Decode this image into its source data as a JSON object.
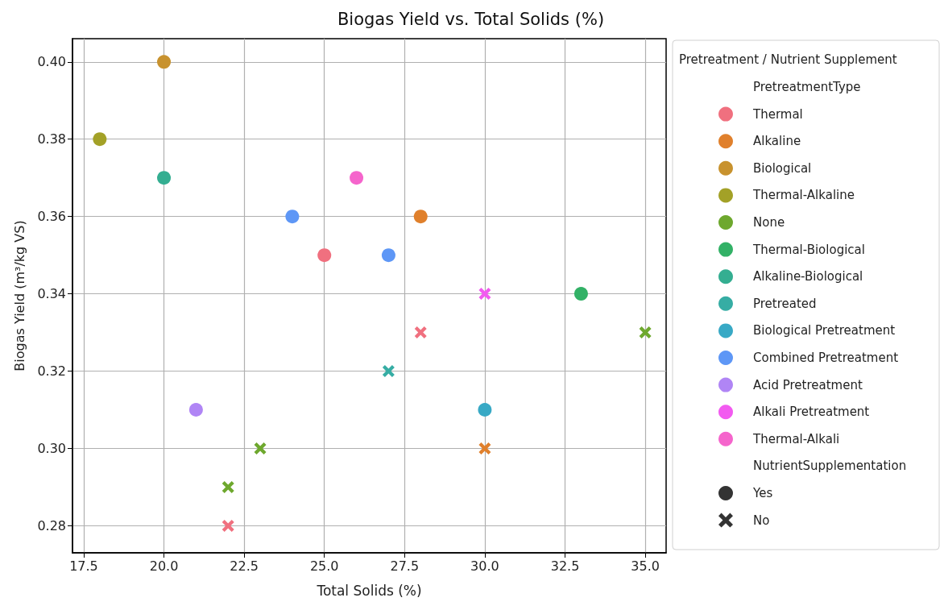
{
  "chart_data": {
    "type": "scatter",
    "title": "Biogas Yield vs. Total Solids (%)",
    "xlabel": "Total Solids (%)",
    "ylabel": "Biogas Yield (m³/kg VS)",
    "legend_title": "Pretreatment / Nutrient Supplement",
    "annotations": [
      "PretreatmentType",
      "NutrientSupplementation"
    ],
    "xlim": [
      17.15,
      35.65
    ],
    "xticks": [
      {
        "value": 17.5,
        "label": "17.5"
      },
      {
        "value": 20,
        "label": "20.0"
      },
      {
        "value": 22.5,
        "label": "22.5"
      },
      {
        "value": 25,
        "label": "25.0"
      },
      {
        "value": 27.5,
        "label": "27.5"
      },
      {
        "value": 30,
        "label": "30.0"
      },
      {
        "value": 32.5,
        "label": "32.5"
      },
      {
        "value": 35,
        "label": "35.0"
      }
    ],
    "ylim": [
      0.273,
      0.406
    ],
    "yticks": [
      {
        "value": 0.28,
        "label": "0.28"
      },
      {
        "value": 0.3,
        "label": "0.30"
      },
      {
        "value": 0.32,
        "label": "0.32"
      },
      {
        "value": 0.34,
        "label": "0.34"
      },
      {
        "value": 0.36,
        "label": "0.36"
      },
      {
        "value": 0.38,
        "label": "0.38"
      },
      {
        "value": 0.4,
        "label": "0.40"
      }
    ],
    "grid": true,
    "legend": "right",
    "series": [
      {
        "name": "Thermal",
        "color": "#f0707f",
        "marker": "circle",
        "x": [
          25
        ],
        "values": [
          0.35
        ]
      },
      {
        "color": "#f0707f",
        "marker": "cross",
        "x": [
          22,
          28
        ],
        "values": [
          0.28,
          0.33
        ]
      },
      {
        "name": "Alkaline",
        "color": "#e0802c",
        "marker": "circle",
        "x": [
          28
        ],
        "values": [
          0.36
        ]
      },
      {
        "color": "#e0802c",
        "marker": "cross",
        "x": [
          30
        ],
        "values": [
          0.3
        ]
      },
      {
        "name": "Biological",
        "color": "#c8922e",
        "marker": "circle",
        "x": [
          20
        ],
        "values": [
          0.4
        ]
      },
      {
        "name": "Thermal-Alkaline",
        "color": "#a3a127",
        "marker": "circle",
        "x": [
          18
        ],
        "values": [
          0.38
        ]
      },
      {
        "name": "None",
        "color": "#6ea82e",
        "marker": "cross",
        "x": [
          22,
          23,
          35
        ],
        "values": [
          0.29,
          0.3,
          0.33
        ]
      },
      {
        "name": "Thermal-Biological",
        "color": "#32b166",
        "marker": "circle",
        "x": [
          33
        ],
        "values": [
          0.34
        ]
      },
      {
        "name": "Alkaline-Biological",
        "color": "#34ae91",
        "marker": "circle",
        "x": [
          20
        ],
        "values": [
          0.37
        ]
      },
      {
        "name": "Pretreated",
        "color": "#36ada4",
        "marker": "cross",
        "x": [
          27
        ],
        "values": [
          0.32
        ]
      },
      {
        "name": "Biological Pretreatment",
        "color": "#38a9c5",
        "marker": "circle",
        "x": [
          30
        ],
        "values": [
          0.31
        ]
      },
      {
        "name": "Combined Pretreatment",
        "color": "#5e97f6",
        "marker": "circle",
        "x": [
          24,
          27
        ],
        "values": [
          0.36,
          0.35
        ]
      },
      {
        "name": "Acid Pretreatment",
        "color": "#b085f5",
        "marker": "circle",
        "x": [
          21
        ],
        "values": [
          0.31
        ]
      },
      {
        "name": "Alkali Pretreatment",
        "color": "#f25af0",
        "marker": "cross",
        "x": [
          30
        ],
        "values": [
          0.34
        ]
      },
      {
        "name": "Thermal-Alkali",
        "color": "#f565cc",
        "marker": "circle",
        "x": [
          26
        ],
        "values": [
          0.37
        ]
      },
      {
        "name": "Yes",
        "color": "#333333",
        "marker": "circle"
      },
      {
        "name": "No",
        "color": "#333333",
        "marker": "cross"
      }
    ]
  }
}
